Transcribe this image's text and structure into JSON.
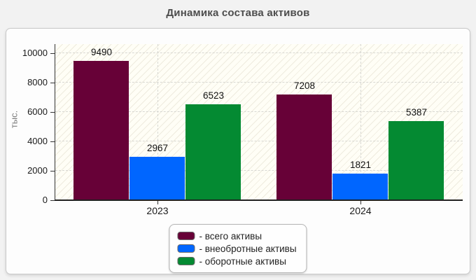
{
  "page": {
    "background": "#f2f2f2"
  },
  "chart_data": {
    "type": "bar",
    "title": "Динамика состава активов",
    "ylabel": "тыс.",
    "xlabel": "",
    "categories": [
      "2023",
      "2024"
    ],
    "series": [
      {
        "name": "всего активы",
        "legend_label": "- всего активы",
        "color": "#670137",
        "values": [
          9490,
          7208
        ]
      },
      {
        "name": "внеобротные активы",
        "legend_label": "- внеобротные активы",
        "color": "#0066FF",
        "values": [
          2967,
          1821
        ]
      },
      {
        "name": "оборотные активы",
        "legend_label": "- оборотные активы",
        "color": "#048A32",
        "values": [
          6523,
          5387
        ]
      }
    ],
    "y_ticks": [
      0,
      2000,
      4000,
      6000,
      8000,
      10000
    ],
    "ylim": [
      0,
      10000
    ],
    "grid": "dashed, horizontal at ticks + vertical at category centers",
    "plot_background": "ivory with diagonal hatch",
    "legend_position": "bottom-center",
    "value_labels": true
  }
}
